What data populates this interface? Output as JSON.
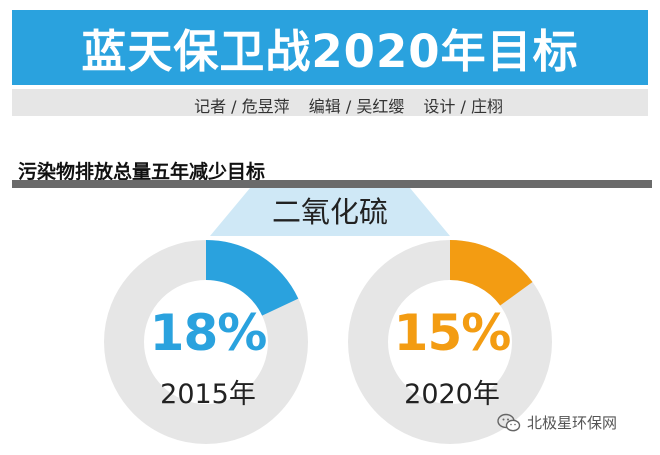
{
  "header": {
    "title": "蓝天保卫战2020年目标",
    "credits": [
      "记者 / 危昱萍",
      "编辑 / 吴红缨",
      "设计 / 庄栩"
    ]
  },
  "section": {
    "title": "污染物排放总量五年减少目标",
    "pollutant": "二氧化硫"
  },
  "colors": {
    "title_bar": "#2aa2de",
    "series_2015": "#2aa2de",
    "series_2020": "#f39c12",
    "ring_remainder": "#e6e6e6"
  },
  "chart_data": [
    {
      "type": "pie",
      "title": "",
      "categories": [
        "2015年"
      ],
      "values": [
        18
      ],
      "value_label": "18%",
      "color": "#2aa2de"
    },
    {
      "type": "pie",
      "title": "",
      "categories": [
        "2020年"
      ],
      "values": [
        15
      ],
      "value_label": "15%",
      "color": "#f39c12"
    }
  ],
  "watermark": {
    "icon": "wechat-icon",
    "text": "北极星环保网"
  }
}
